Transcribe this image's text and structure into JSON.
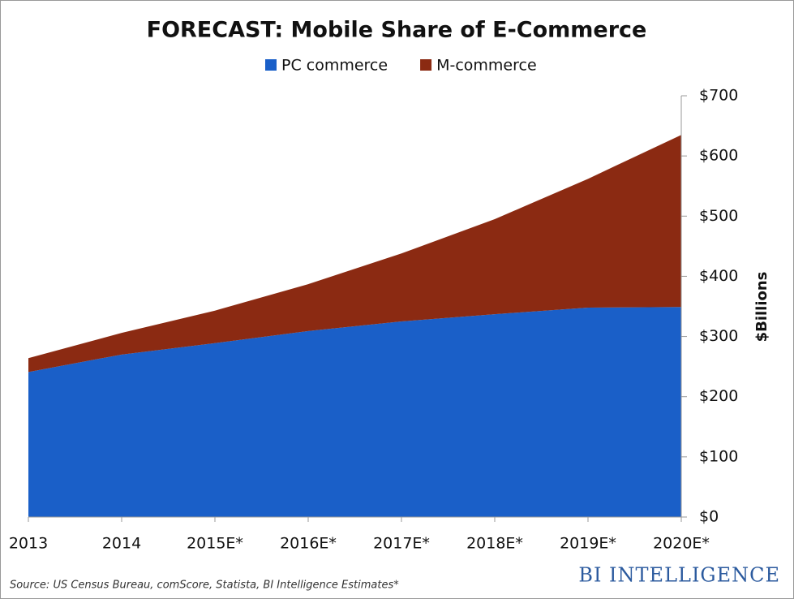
{
  "chart_data": {
    "type": "stacked-area",
    "title": "FORECAST: Mobile Share of E-Commerce",
    "categories": [
      "2013",
      "2014",
      "2015E*",
      "2016E*",
      "2017E*",
      "2018E*",
      "2019E*",
      "2020E*"
    ],
    "series": [
      {
        "name": "PC commerce",
        "color": "#1a5fc8",
        "values": [
          241,
          270,
          289,
          309,
          325,
          337,
          348,
          349
        ]
      },
      {
        "name": "M-commerce",
        "color": "#8b2a12",
        "values": [
          23,
          36,
          54,
          78,
          113,
          158,
          214,
          286
        ]
      }
    ],
    "ylabel": "$Billions",
    "ylim": [
      0,
      700
    ],
    "yticks": [
      {
        "value": 0,
        "label": "$0"
      },
      {
        "value": 100,
        "label": "$100"
      },
      {
        "value": 200,
        "label": "$200"
      },
      {
        "value": 300,
        "label": "$300"
      },
      {
        "value": 400,
        "label": "$400"
      },
      {
        "value": 500,
        "label": "$500"
      },
      {
        "value": 600,
        "label": "$600"
      },
      {
        "value": 700,
        "label": "$700"
      }
    ],
    "source": "Source: US Census Bureau, comScore, Statista, BI Intelligence Estimates*",
    "brand": "BI INTELLIGENCE"
  }
}
